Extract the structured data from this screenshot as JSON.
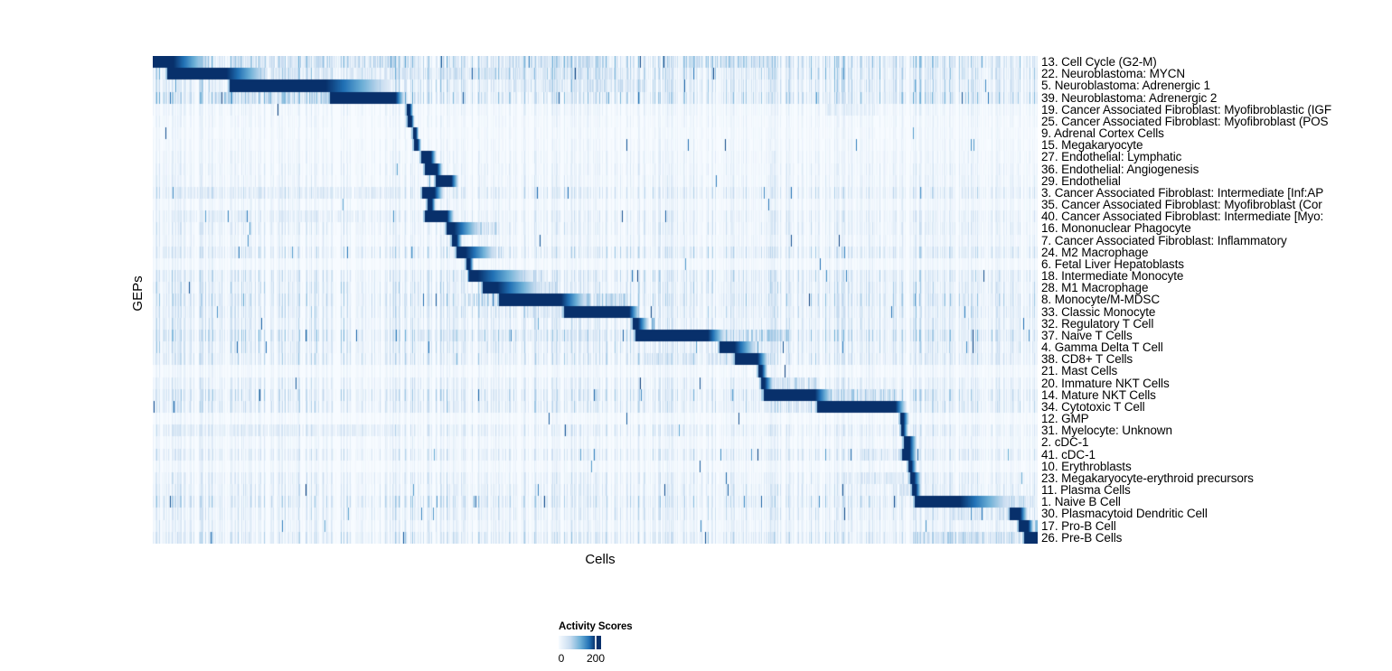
{
  "chart_data": {
    "type": "heatmap",
    "title": "",
    "xlabel": "Cells",
    "ylabel": "GEPs",
    "colorbar": {
      "title": "Activity Scores",
      "min": 0,
      "max": 200,
      "tick_labels": [
        "0",
        "200"
      ],
      "palette": [
        "#F7FBFF",
        "#C6DBEF",
        "#6BAED6",
        "#2171B5",
        "#08306B"
      ]
    },
    "noise_seed": 42,
    "rows": [
      {
        "label": "13. Cell Cycle (G2-M)",
        "block": [
          0.0,
          0.023
        ],
        "fade": 0.041,
        "noise": 0.5,
        "bands": [
          [
            0.09,
            0.3,
            0.35
          ],
          [
            0.4,
            0.52,
            0.3
          ],
          [
            0.6,
            0.7,
            0.38
          ]
        ]
      },
      {
        "label": "22. Neuroblastoma: MYCN",
        "block": [
          0.016,
          0.083
        ],
        "fade": 0.046,
        "noise": 0.45,
        "bands": [
          [
            0.13,
            0.55,
            0.22
          ]
        ]
      },
      {
        "label": "5. Neuroblastoma: Adrenergic 1",
        "block": [
          0.086,
          0.195
        ],
        "fade": 0.072,
        "noise": 0.4,
        "bands": [
          [
            0.4,
            0.56,
            0.28
          ]
        ]
      },
      {
        "label": "39. Neuroblastoma: Adrenergic 2",
        "block": [
          0.2,
          0.274
        ],
        "fade": 0.01,
        "noise": 0.5,
        "bands": [
          [
            0.07,
            0.2,
            0.45
          ]
        ]
      },
      {
        "label": "19. Cancer Associated Fibroblast: Myofibroblastic (IGF",
        "block": [
          0.287,
          0.29
        ],
        "fade": 0.004,
        "noise": 0.15,
        "bands": [
          [
            0.76,
            0.82,
            0.18
          ]
        ]
      },
      {
        "label": "25. Cancer Associated Fibroblast: Myofibroblast (POS",
        "block": [
          0.288,
          0.292
        ],
        "fade": 0.003,
        "noise": 0.12,
        "bands": []
      },
      {
        "label": "9. Adrenal Cortex Cells",
        "block": [
          0.294,
          0.297
        ],
        "fade": 0.003,
        "noise": 0.1,
        "bands": []
      },
      {
        "label": "15. Megakaryocyte",
        "block": [
          0.295,
          0.299
        ],
        "fade": 0.004,
        "noise": 0.12,
        "bands": []
      },
      {
        "label": "27. Endothelial: Lymphatic",
        "block": [
          0.303,
          0.314
        ],
        "fade": 0.006,
        "noise": 0.15,
        "bands": []
      },
      {
        "label": "36. Endothelial: Angiogenesis",
        "block": [
          0.307,
          0.321
        ],
        "fade": 0.006,
        "noise": 0.18,
        "bands": []
      },
      {
        "label": "29. Endothelial",
        "block": [
          0.319,
          0.337
        ],
        "fade": 0.008,
        "noise": 0.18,
        "bands": []
      },
      {
        "label": "3. Cancer Associated Fibroblast: Intermediate [Inf:AP",
        "block": [
          0.304,
          0.318
        ],
        "fade": 0.01,
        "noise": 0.3,
        "bands": [
          [
            0.02,
            0.28,
            0.16
          ]
        ]
      },
      {
        "label": "35. Cancer Associated Fibroblast: Myofibroblast (Cor",
        "block": [
          0.31,
          0.315
        ],
        "fade": 0.004,
        "noise": 0.15,
        "bands": []
      },
      {
        "label": "40. Cancer Associated Fibroblast: Intermediate [Myo:",
        "block": [
          0.307,
          0.332
        ],
        "fade": 0.008,
        "noise": 0.25,
        "bands": [
          [
            0.02,
            0.28,
            0.14
          ]
        ]
      },
      {
        "label": "16. Mononuclear Phagocyte",
        "block": [
          0.331,
          0.34
        ],
        "fade": 0.03,
        "noise": 0.25,
        "bands": [
          [
            0.34,
            0.39,
            0.38
          ]
        ]
      },
      {
        "label": "7. Cancer Associated Fibroblast: Inflammatory",
        "block": [
          0.338,
          0.343
        ],
        "fade": 0.006,
        "noise": 0.18,
        "bands": []
      },
      {
        "label": "24. M2 Macrophage",
        "block": [
          0.343,
          0.353
        ],
        "fade": 0.035,
        "noise": 0.35,
        "bands": [
          [
            0.355,
            0.4,
            0.35
          ]
        ]
      },
      {
        "label": "6. Fetal Liver Hepatoblasts",
        "block": [
          0.354,
          0.358
        ],
        "fade": 0.004,
        "noise": 0.12,
        "bands": []
      },
      {
        "label": "18. Intermediate Monocyte",
        "block": [
          0.357,
          0.367
        ],
        "fade": 0.06,
        "noise": 0.35,
        "bands": [
          [
            0.375,
            0.44,
            0.32
          ]
        ]
      },
      {
        "label": "28. M1 Macrophage",
        "block": [
          0.372,
          0.389
        ],
        "fade": 0.05,
        "noise": 0.35,
        "bands": [
          [
            0.39,
            0.46,
            0.3
          ]
        ]
      },
      {
        "label": "8. Monocyte/M-MDSC",
        "block": [
          0.391,
          0.461
        ],
        "fade": 0.03,
        "noise": 0.4,
        "bands": [
          [
            0.355,
            0.391,
            0.42
          ],
          [
            0.47,
            0.54,
            0.4
          ]
        ]
      },
      {
        "label": "33. Classic Monocyte",
        "block": [
          0.464,
          0.538
        ],
        "fade": 0.012,
        "noise": 0.35,
        "bands": [
          [
            0.42,
            0.464,
            0.32
          ]
        ]
      },
      {
        "label": "32. Regulatory T Cell",
        "block": [
          0.542,
          0.548
        ],
        "fade": 0.012,
        "noise": 0.3,
        "bands": []
      },
      {
        "label": "37. Naive T Cells",
        "block": [
          0.545,
          0.627
        ],
        "fade": 0.02,
        "noise": 0.45,
        "bands": [
          [
            0.627,
            0.72,
            0.4
          ],
          [
            0.3,
            0.545,
            0.16
          ]
        ]
      },
      {
        "label": "4. Gamma Delta T Cell",
        "block": [
          0.64,
          0.657
        ],
        "fade": 0.025,
        "noise": 0.35,
        "bands": [
          [
            0.657,
            0.7,
            0.28
          ]
        ]
      },
      {
        "label": "38. CD8+ T Cells",
        "block": [
          0.657,
          0.683
        ],
        "fade": 0.012,
        "noise": 0.35,
        "bands": [
          [
            0.545,
            0.656,
            0.22
          ]
        ]
      },
      {
        "label": "21. Mast Cells",
        "block": [
          0.684,
          0.688
        ],
        "fade": 0.006,
        "noise": 0.12,
        "bands": []
      },
      {
        "label": "20. Immature NKT Cells",
        "block": [
          0.687,
          0.691
        ],
        "fade": 0.01,
        "noise": 0.25,
        "bands": [
          [
            0.692,
            0.75,
            0.32
          ]
        ]
      },
      {
        "label": "14. Mature NKT Cells",
        "block": [
          0.69,
          0.748
        ],
        "fade": 0.02,
        "noise": 0.4,
        "bands": [
          [
            0.748,
            0.84,
            0.45
          ]
        ]
      },
      {
        "label": "34. Cytotoxic T Cell",
        "block": [
          0.75,
          0.839
        ],
        "fade": 0.012,
        "noise": 0.35,
        "bands": [
          [
            0.69,
            0.75,
            0.22
          ]
        ]
      },
      {
        "label": "12. GMP",
        "block": [
          0.844,
          0.848
        ],
        "fade": 0.006,
        "noise": 0.1,
        "bands": []
      },
      {
        "label": "31. Myelocyte: Unknown",
        "block": [
          0.845,
          0.848
        ],
        "fade": 0.005,
        "noise": 0.28,
        "bands": [
          [
            0.02,
            0.28,
            0.15
          ]
        ]
      },
      {
        "label": "2. cDC-1",
        "block": [
          0.848,
          0.855
        ],
        "fade": 0.008,
        "noise": 0.15,
        "bands": []
      },
      {
        "label": "41. cDC-1",
        "block": [
          0.846,
          0.855
        ],
        "fade": 0.008,
        "noise": 0.28,
        "bands": [
          [
            0.8,
            0.845,
            0.3
          ]
        ]
      },
      {
        "label": "10. Erythroblasts",
        "block": [
          0.853,
          0.857
        ],
        "fade": 0.006,
        "noise": 0.12,
        "bands": []
      },
      {
        "label": "23. Megakaryocyte-erythroid precursors",
        "block": [
          0.855,
          0.86
        ],
        "fade": 0.008,
        "noise": 0.25,
        "bands": [
          [
            0.78,
            0.853,
            0.24
          ]
        ]
      },
      {
        "label": "11. Plasma Cells",
        "block": [
          0.858,
          0.862
        ],
        "fade": 0.006,
        "noise": 0.28,
        "bands": [
          [
            0.84,
            0.857,
            0.26
          ]
        ]
      },
      {
        "label": "1. Naive B Cell",
        "block": [
          0.861,
          0.912
        ],
        "fade": 0.057,
        "noise": 0.4,
        "bands": [
          [
            0.912,
            0.995,
            0.35
          ]
        ]
      },
      {
        "label": "30. Plasmacytoid Dendritic Cell",
        "block": [
          0.968,
          0.98
        ],
        "fade": 0.008,
        "noise": 0.28,
        "bands": [
          [
            0.9,
            0.967,
            0.26
          ]
        ]
      },
      {
        "label": "17. Pro-B Cell",
        "block": [
          0.978,
          0.989
        ],
        "fade": 0.006,
        "noise": 0.22,
        "bands": [
          [
            0.995,
            1.0,
            0.5
          ]
        ]
      },
      {
        "label": "26. Pre-B Cells",
        "block": [
          0.984,
          1.0
        ],
        "fade": 0.0,
        "noise": 0.35,
        "bands": [
          [
            0.86,
            0.983,
            0.38
          ]
        ]
      }
    ]
  }
}
